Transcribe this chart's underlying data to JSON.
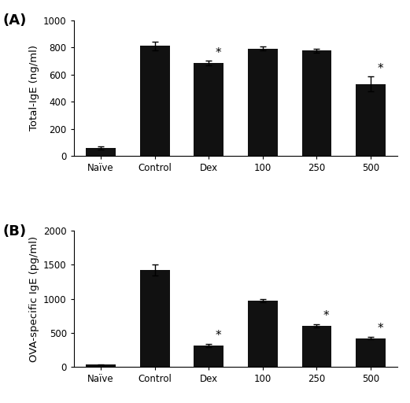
{
  "panel_A": {
    "label": "(A)",
    "categories": [
      "Naïve",
      "Control",
      "Dex",
      "100",
      "250",
      "500"
    ],
    "values": [
      60,
      810,
      685,
      790,
      775,
      530
    ],
    "errors": [
      10,
      30,
      15,
      15,
      15,
      55
    ],
    "ylabel": "Total-IgE (ng/ml)",
    "ylim": [
      0,
      1000
    ],
    "yticks": [
      0,
      200,
      400,
      600,
      800,
      1000
    ],
    "sig_markers": [
      false,
      false,
      true,
      false,
      false,
      true
    ]
  },
  "panel_B": {
    "label": "(B)",
    "categories": [
      "Naïve",
      "Control",
      "Dex",
      "100",
      "250",
      "500"
    ],
    "values": [
      30,
      1420,
      310,
      970,
      600,
      420
    ],
    "errors": [
      5,
      80,
      25,
      25,
      25,
      20
    ],
    "ylabel": "OVA-specific IgE (pg/ml)",
    "ylim": [
      0,
      2000
    ],
    "yticks": [
      0,
      500,
      1000,
      1500,
      2000
    ],
    "sig_markers": [
      false,
      false,
      true,
      false,
      true,
      true
    ]
  },
  "bar_color": "#111111",
  "bar_width": 0.55,
  "tick_fontsize": 8.5,
  "label_fontsize": 9.5,
  "panel_label_fontsize": 13
}
